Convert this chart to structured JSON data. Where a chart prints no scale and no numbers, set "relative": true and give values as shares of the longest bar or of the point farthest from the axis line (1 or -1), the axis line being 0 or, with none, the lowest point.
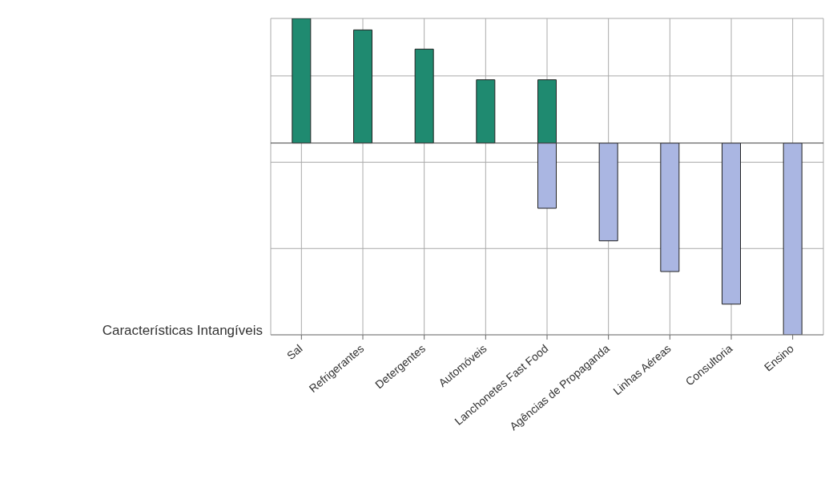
{
  "chart_data": {
    "type": "bar",
    "relative": true,
    "stacked": true,
    "grid": true,
    "categories": [
      "Sal",
      "Refrigerantes",
      "Detergentes",
      "Automóveis",
      "Lanchonetes Fast Food",
      "Agências de Propaganda",
      "Linhas Aéreas",
      "Consultoria",
      "Ensino"
    ],
    "series": [
      {
        "color": "#1f8a70",
        "values": [
          0.65,
          0.59,
          0.49,
          0.33,
          0.33,
          null,
          null,
          null,
          null
        ]
      },
      {
        "color": "#aab6e2",
        "values": [
          null,
          null,
          null,
          null,
          -0.34,
          -0.51,
          -0.67,
          -0.84,
          -1
        ]
      }
    ],
    "annotations": [
      "Características Intangíveis"
    ]
  }
}
